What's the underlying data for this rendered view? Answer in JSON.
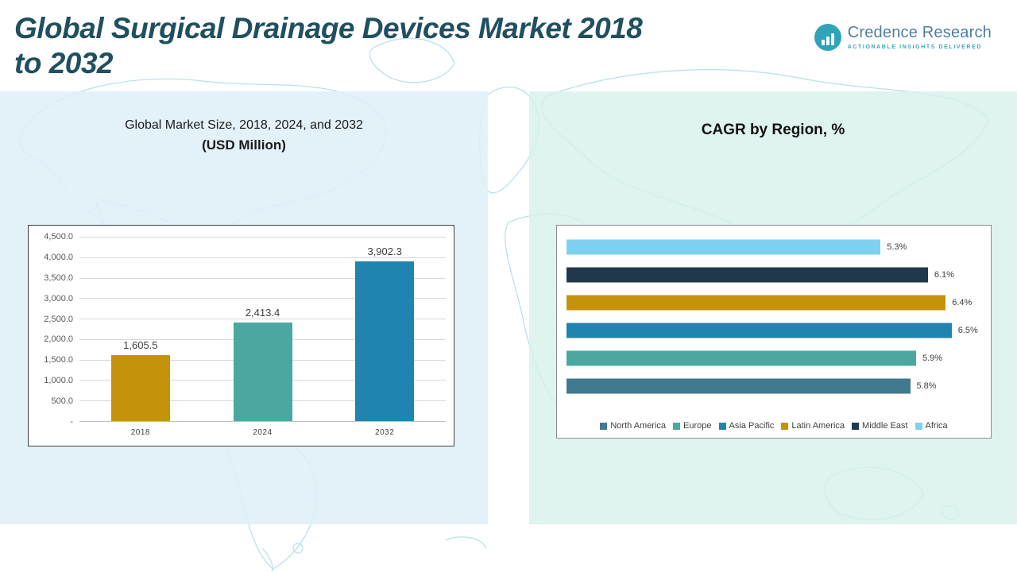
{
  "page": {
    "title_line1": "Global Surgical Drainage Devices Market 2018",
    "title_line2": "to 2032"
  },
  "logo": {
    "name": "Credence Research",
    "tagline": "Actionable Insights Delivered"
  },
  "colors": {
    "title_text": "#204F60",
    "panel_left_bg": "#DEF0F8",
    "panel_right_bg": "#D8F0EC",
    "gold": "#C5930B",
    "teal": "#4AA8A0",
    "blue": "#2183B0",
    "dark_navy": "#20384C",
    "light_blue": "#7FD1F2",
    "steel_blue": "#41798F"
  },
  "chart_data": [
    {
      "type": "bar",
      "title": "Global Market Size, 2018, 2024, and 2032",
      "subtitle": "(USD Million)",
      "categories": [
        "2018",
        "2024",
        "2032"
      ],
      "values": [
        1605.5,
        2413.4,
        3902.3
      ],
      "value_labels": [
        "1,605.5",
        "2,413.4",
        "3,902.3"
      ],
      "bar_colors": [
        "#C5930B",
        "#4AA8A0",
        "#2183B0"
      ],
      "ylim": [
        0,
        4500
      ],
      "ytick_labels_top_to_bottom": [
        "4,500.0",
        "4,000.0",
        "3,500.0",
        "3,000.0",
        "2,500.0",
        "2,000.0",
        "1,500.0",
        "1,000.0",
        "500.0",
        "-"
      ],
      "grid": true,
      "legend_position": "none"
    },
    {
      "type": "bar-horizontal",
      "title": "CAGR by Region, %",
      "xlim": [
        0,
        7
      ],
      "grid": false,
      "rows_top_to_bottom": [
        {
          "region": "Africa",
          "value": 5.3,
          "label": "5.3%",
          "color": "#7FD1F2"
        },
        {
          "region": "Middle East",
          "value": 6.1,
          "label": "6.1%",
          "color": "#20384C"
        },
        {
          "region": "Latin America",
          "value": 6.4,
          "label": "6.4%",
          "color": "#C5930B"
        },
        {
          "region": "Asia Pacific",
          "value": 6.5,
          "label": "6.5%",
          "color": "#2183B0"
        },
        {
          "region": "Europe",
          "value": 5.9,
          "label": "5.9%",
          "color": "#4AA8A0"
        },
        {
          "region": "North America",
          "value": 5.8,
          "label": "5.8%",
          "color": "#41798F"
        }
      ],
      "legend_position": "bottom",
      "legend": [
        {
          "label": "North America",
          "color": "#41798F"
        },
        {
          "label": "Europe",
          "color": "#4AA8A0"
        },
        {
          "label": "Asia Pacific",
          "color": "#2183B0"
        },
        {
          "label": "Latin America",
          "color": "#C5930B"
        },
        {
          "label": "Middle East",
          "color": "#20384C"
        },
        {
          "label": "Africa",
          "color": "#7FD1F2"
        }
      ]
    }
  ]
}
